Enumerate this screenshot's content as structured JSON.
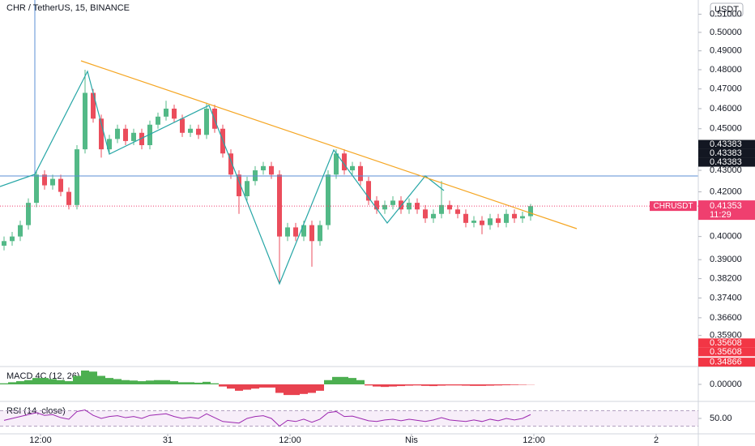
{
  "header": {
    "title": "CHR / TetherUS, 15, BINANCE",
    "currency_button": "USDT"
  },
  "chart_data": [
    {
      "type": "candlestick",
      "log_scale": true,
      "up_color": "#53b987",
      "down_color": "#eb4d5c",
      "ohlc": [
        [
          0.396,
          0.4,
          0.394,
          0.398
        ],
        [
          0.398,
          0.402,
          0.396,
          0.4
        ],
        [
          0.4,
          0.407,
          0.398,
          0.405
        ],
        [
          0.405,
          0.417,
          0.403,
          0.415
        ],
        [
          0.415,
          0.43,
          0.413,
          0.428
        ],
        [
          0.428,
          0.43,
          0.421,
          0.423
        ],
        [
          0.423,
          0.428,
          0.421,
          0.426
        ],
        [
          0.426,
          0.428,
          0.418,
          0.42
        ],
        [
          0.42,
          0.422,
          0.412,
          0.414
        ],
        [
          0.414,
          0.442,
          0.412,
          0.44
        ],
        [
          0.44,
          0.48,
          0.438,
          0.468
        ],
        [
          0.468,
          0.47,
          0.453,
          0.455
        ],
        [
          0.455,
          0.457,
          0.436,
          0.44
        ],
        [
          0.44,
          0.447,
          0.438,
          0.445
        ],
        [
          0.445,
          0.452,
          0.443,
          0.45
        ],
        [
          0.45,
          0.452,
          0.442,
          0.444
        ],
        [
          0.444,
          0.45,
          0.442,
          0.448
        ],
        [
          0.448,
          0.45,
          0.44,
          0.442
        ],
        [
          0.442,
          0.454,
          0.44,
          0.452
        ],
        [
          0.452,
          0.458,
          0.45,
          0.456
        ],
        [
          0.456,
          0.464,
          0.454,
          0.46
        ],
        [
          0.46,
          0.462,
          0.453,
          0.455
        ],
        [
          0.455,
          0.457,
          0.446,
          0.448
        ],
        [
          0.448,
          0.452,
          0.446,
          0.45
        ],
        [
          0.45,
          0.452,
          0.445,
          0.447
        ],
        [
          0.447,
          0.463,
          0.445,
          0.46
        ],
        [
          0.46,
          0.462,
          0.448,
          0.45
        ],
        [
          0.45,
          0.452,
          0.436,
          0.438
        ],
        [
          0.438,
          0.44,
          0.426,
          0.428
        ],
        [
          0.428,
          0.43,
          0.41,
          0.418
        ],
        [
          0.418,
          0.427,
          0.416,
          0.425
        ],
        [
          0.425,
          0.432,
          0.423,
          0.43
        ],
        [
          0.43,
          0.434,
          0.428,
          0.432
        ],
        [
          0.432,
          0.434,
          0.426,
          0.428
        ],
        [
          0.428,
          0.43,
          0.38,
          0.4
        ],
        [
          0.4,
          0.406,
          0.398,
          0.404
        ],
        [
          0.404,
          0.406,
          0.398,
          0.4
        ],
        [
          0.4,
          0.407,
          0.398,
          0.405
        ],
        [
          0.405,
          0.407,
          0.387,
          0.398
        ],
        [
          0.398,
          0.407,
          0.396,
          0.405
        ],
        [
          0.405,
          0.43,
          0.403,
          0.428
        ],
        [
          0.428,
          0.44,
          0.426,
          0.438
        ],
        [
          0.438,
          0.44,
          0.428,
          0.43
        ],
        [
          0.43,
          0.434,
          0.428,
          0.432
        ],
        [
          0.432,
          0.434,
          0.423,
          0.425
        ],
        [
          0.425,
          0.427,
          0.414,
          0.416
        ],
        [
          0.416,
          0.418,
          0.41,
          0.412
        ],
        [
          0.412,
          0.416,
          0.41,
          0.414
        ],
        [
          0.414,
          0.418,
          0.412,
          0.416
        ],
        [
          0.416,
          0.418,
          0.41,
          0.412
        ],
        [
          0.412,
          0.417,
          0.41,
          0.415
        ],
        [
          0.415,
          0.417,
          0.41,
          0.412
        ],
        [
          0.412,
          0.414,
          0.406,
          0.408
        ],
        [
          0.408,
          0.412,
          0.406,
          0.41
        ],
        [
          0.41,
          0.425,
          0.408,
          0.414
        ],
        [
          0.414,
          0.416,
          0.41,
          0.412
        ],
        [
          0.412,
          0.414,
          0.408,
          0.41
        ],
        [
          0.41,
          0.412,
          0.404,
          0.406
        ],
        [
          0.406,
          0.409,
          0.404,
          0.407
        ],
        [
          0.407,
          0.409,
          0.401,
          0.405
        ],
        [
          0.405,
          0.41,
          0.403,
          0.408
        ],
        [
          0.408,
          0.41,
          0.404,
          0.406
        ],
        [
          0.406,
          0.412,
          0.404,
          0.41
        ],
        [
          0.41,
          0.412,
          0.406,
          0.408
        ],
        [
          0.408,
          0.411,
          0.406,
          0.409
        ],
        [
          0.409,
          0.4145,
          0.407,
          0.4135
        ]
      ],
      "ylim": [
        0.347,
        0.518
      ],
      "yticks": [
        {
          "value": 0.51,
          "label": "0.51000"
        },
        {
          "value": 0.5,
          "label": "0.50000"
        },
        {
          "value": 0.49,
          "label": "0.49000"
        },
        {
          "value": 0.48,
          "label": "0.48000"
        },
        {
          "value": 0.47,
          "label": "0.47000"
        },
        {
          "value": 0.46,
          "label": "0.46000"
        },
        {
          "value": 0.45,
          "label": "0.45000"
        },
        {
          "value": 0.43,
          "label": "0.43000"
        },
        {
          "value": 0.42,
          "label": "0.42000"
        },
        {
          "value": 0.4,
          "label": "0.40000"
        },
        {
          "value": 0.39,
          "label": "0.39000"
        },
        {
          "value": 0.382,
          "label": "0.38200"
        },
        {
          "value": 0.374,
          "label": "0.37400"
        },
        {
          "value": 0.366,
          "label": "0.36600"
        },
        {
          "value": 0.359,
          "label": "0.35900"
        }
      ],
      "xlim": [
        -0.5,
        85.7
      ],
      "xticks": [
        {
          "value": 4.5,
          "label": "12:00"
        },
        {
          "value": 20.2,
          "label": "31"
        },
        {
          "value": 35.3,
          "label": "12:00"
        },
        {
          "value": 50.3,
          "label": "Nis"
        },
        {
          "value": 65.4,
          "label": "12:00"
        },
        {
          "value": 80.5,
          "label": "2"
        }
      ],
      "price_tags": [
        {
          "value": 0.43383,
          "color": "#131722"
        },
        {
          "value": 0.43383,
          "color": "#131722"
        },
        {
          "value": 0.43383,
          "color": "#131722"
        },
        {
          "value": 0.35608,
          "color": "#f23645"
        },
        {
          "value": 0.35608,
          "color": "#f23645"
        },
        {
          "value": 0.34866,
          "color": "#f23645"
        }
      ],
      "last_price": {
        "symbol": "CHRUSDT",
        "value": 0.41353,
        "countdown": "11:29",
        "color": "#ef3f6f"
      }
    },
    {
      "type": "bar",
      "title": "MACD 4C (12, 26)",
      "up_color": "#4caf50",
      "down_color": "#e8424f",
      "values": [
        0.0005,
        0.001,
        0.0015,
        0.002,
        0.003,
        0.003,
        0.0025,
        0.002,
        0.0015,
        0.004,
        0.0065,
        0.006,
        0.004,
        0.003,
        0.0025,
        0.002,
        0.0018,
        0.0015,
        0.0018,
        0.002,
        0.002,
        0.0015,
        0.001,
        0.001,
        0.0008,
        0.0012,
        0.0005,
        -0.001,
        -0.002,
        -0.003,
        -0.0025,
        -0.002,
        -0.0015,
        -0.0015,
        -0.004,
        -0.005,
        -0.005,
        -0.0045,
        -0.004,
        -0.003,
        0.002,
        0.0035,
        0.0035,
        0.003,
        0.002,
        -0.0005,
        -0.001,
        -0.0012,
        -0.001,
        -0.0008,
        -0.0006,
        -0.0005,
        -0.0007,
        -0.0008,
        -0.0006,
        -0.0005,
        -0.0005,
        -0.0006,
        -0.0007,
        -0.0007,
        -0.0006,
        -0.0005,
        -0.0004,
        -0.0003,
        -0.0002,
        -0.0001
      ],
      "ylim": [
        -0.008,
        0.008
      ],
      "yticks": [
        {
          "value": 0,
          "label": "0.00000"
        }
      ]
    },
    {
      "type": "line",
      "title": "RSI (14, close)",
      "color": "#9c27b0",
      "values": [
        45,
        50,
        55,
        60,
        65,
        58,
        60,
        52,
        48,
        68,
        72,
        58,
        50,
        55,
        57,
        52,
        55,
        50,
        58,
        60,
        62,
        55,
        50,
        53,
        50,
        62,
        52,
        42,
        40,
        38,
        50,
        55,
        57,
        50,
        30,
        45,
        42,
        48,
        40,
        48,
        65,
        68,
        55,
        56,
        50,
        44,
        42,
        46,
        48,
        44,
        48,
        45,
        42,
        46,
        52,
        46,
        44,
        42,
        46,
        42,
        48,
        44,
        50,
        46,
        50,
        60
      ],
      "ylim": [
        10,
        90
      ],
      "yticks": [
        {
          "value": 50,
          "label": "50.00"
        }
      ],
      "band": [
        30,
        70
      ]
    }
  ]
}
